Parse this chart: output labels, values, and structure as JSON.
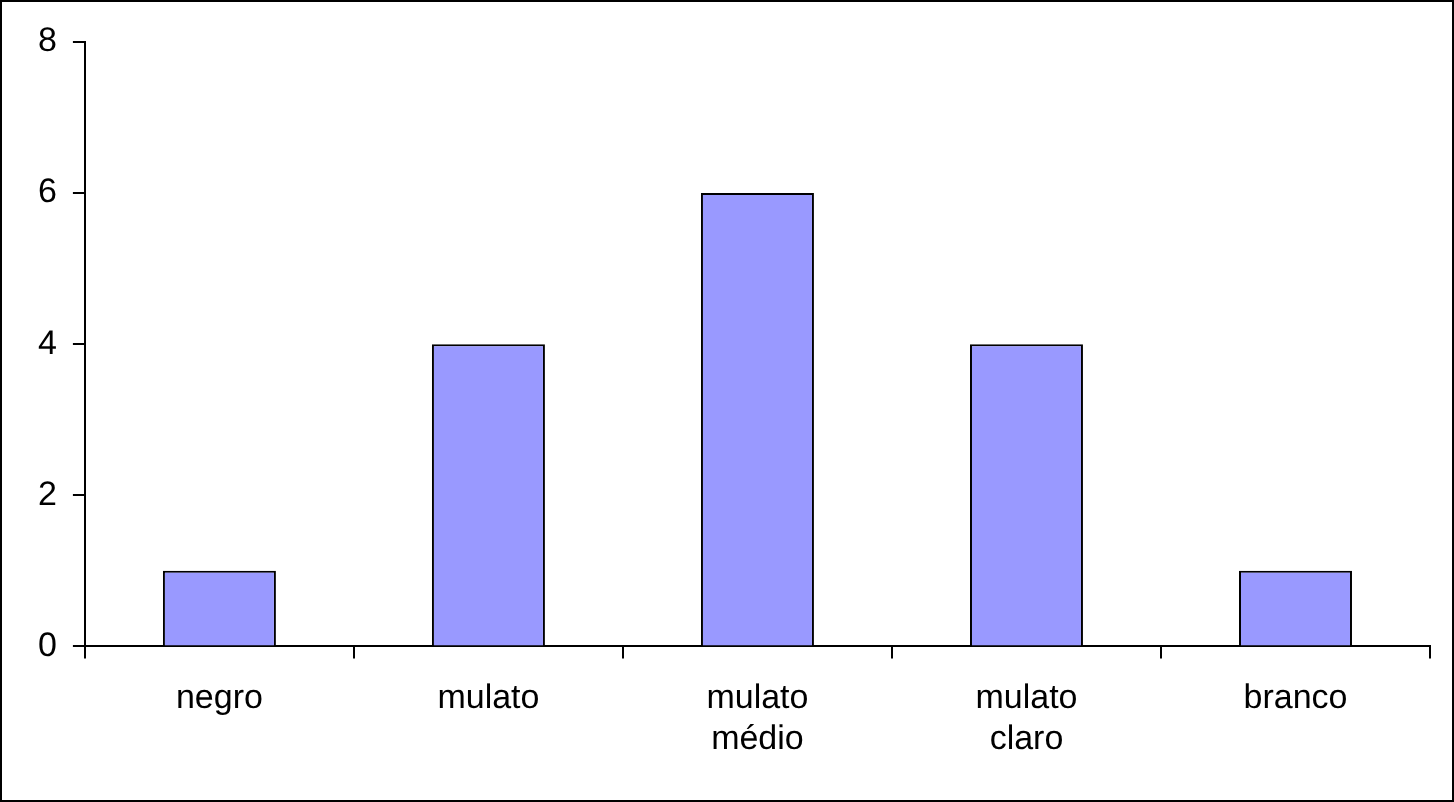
{
  "chart_data": {
    "type": "bar",
    "categories": [
      "negro",
      "mulato",
      "mulato médio",
      "mulato claro",
      "branco"
    ],
    "values": [
      1,
      4,
      6,
      4,
      1
    ],
    "color": "#9999ff",
    "ylim": [
      0,
      8
    ],
    "yticks": [
      0,
      2,
      4,
      6,
      8
    ],
    "grid": false,
    "legend": false
  }
}
